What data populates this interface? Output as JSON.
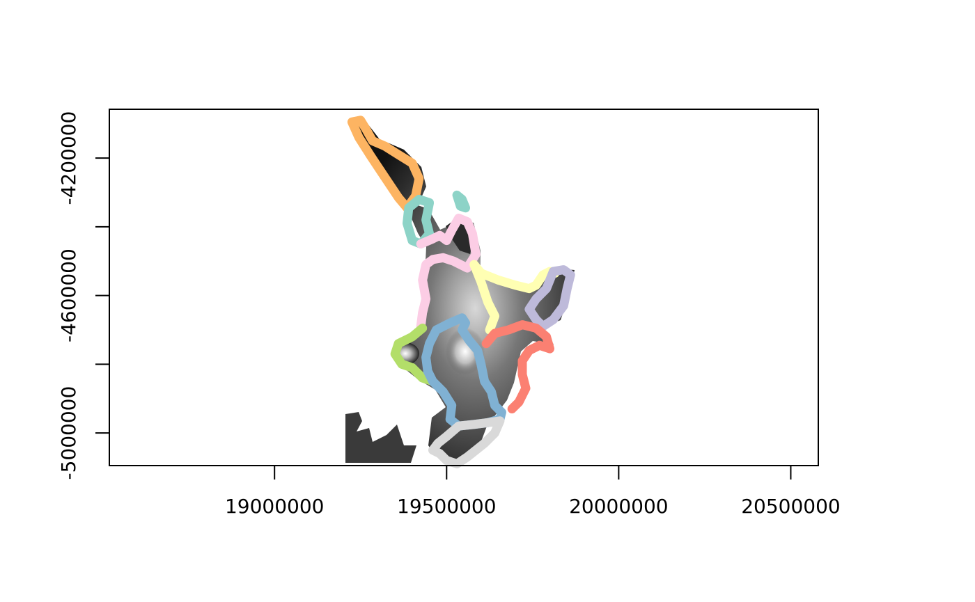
{
  "chart_data": {
    "type": "map",
    "title": "",
    "xlabel": "",
    "ylabel": "",
    "xlim": [
      18520000,
      20580000
    ],
    "ylim": [
      -5095000,
      -4058000
    ],
    "x_ticks": [
      {
        "value": 19000000,
        "label": "19000000"
      },
      {
        "value": 19500000,
        "label": "19500000"
      },
      {
        "value": 20000000,
        "label": "20000000"
      },
      {
        "value": 20500000,
        "label": "20500000"
      }
    ],
    "y_ticks": [
      {
        "value": -4200000,
        "label": "-4200000"
      },
      {
        "value": -4400000,
        "label": ""
      },
      {
        "value": -4600000,
        "label": "-4600000"
      },
      {
        "value": -4800000,
        "label": ""
      },
      {
        "value": -5000000,
        "label": "-5000000"
      }
    ],
    "raster": {
      "palette": "grayscale",
      "description_key": "elevation"
    },
    "regions": [
      {
        "color": "#FDB462",
        "points": [
          [
            19225000,
            -4095000
          ],
          [
            19250000,
            -4090000
          ],
          [
            19265000,
            -4115000
          ],
          [
            19285000,
            -4150000
          ],
          [
            19320000,
            -4165000
          ],
          [
            19360000,
            -4190000
          ],
          [
            19400000,
            -4215000
          ],
          [
            19420000,
            -4260000
          ],
          [
            19410000,
            -4310000
          ],
          [
            19385000,
            -4345000
          ],
          [
            19360000,
            -4315000
          ],
          [
            19320000,
            -4255000
          ],
          [
            19280000,
            -4195000
          ],
          [
            19245000,
            -4140000
          ],
          [
            19225000,
            -4095000
          ]
        ]
      },
      {
        "color": "#8DD3C7",
        "points": [
          [
            19390000,
            -4345000
          ],
          [
            19420000,
            -4320000
          ],
          [
            19450000,
            -4330000
          ],
          [
            19440000,
            -4380000
          ],
          [
            19450000,
            -4420000
          ],
          [
            19425000,
            -4450000
          ],
          [
            19400000,
            -4440000
          ],
          [
            19385000,
            -4390000
          ],
          [
            19390000,
            -4345000
          ]
        ]
      },
      {
        "color": "#8DD3C7",
        "points": [
          [
            19530000,
            -4308000
          ],
          [
            19545000,
            -4320000
          ],
          [
            19555000,
            -4345000
          ],
          [
            19540000,
            -4340000
          ],
          [
            19530000,
            -4308000
          ]
        ]
      },
      {
        "color": "#FCCDE5",
        "points": [
          [
            19425000,
            -4450000
          ],
          [
            19460000,
            -4435000
          ],
          [
            19480000,
            -4425000
          ],
          [
            19500000,
            -4440000
          ],
          [
            19515000,
            -4410000
          ],
          [
            19535000,
            -4375000
          ],
          [
            19560000,
            -4385000
          ],
          [
            19575000,
            -4420000
          ],
          [
            19585000,
            -4480000
          ],
          [
            19560000,
            -4520000
          ],
          [
            19520000,
            -4500000
          ],
          [
            19490000,
            -4490000
          ],
          [
            19460000,
            -4495000
          ],
          [
            19440000,
            -4510000
          ],
          [
            19430000,
            -4555000
          ],
          [
            19440000,
            -4610000
          ],
          [
            19430000,
            -4650000
          ],
          [
            19425000,
            -4690000
          ]
        ]
      },
      {
        "color": "#FFFFB3",
        "points": [
          [
            19580000,
            -4510000
          ],
          [
            19600000,
            -4535000
          ],
          [
            19650000,
            -4555000
          ],
          [
            19700000,
            -4570000
          ],
          [
            19740000,
            -4580000
          ],
          [
            19760000,
            -4570000
          ],
          [
            19780000,
            -4540000
          ],
          [
            19800000,
            -4530000
          ],
          [
            19815000,
            -4535000
          ]
        ]
      },
      {
        "color": "#FFFFB3",
        "points": [
          [
            19580000,
            -4510000
          ],
          [
            19600000,
            -4560000
          ],
          [
            19620000,
            -4620000
          ],
          [
            19640000,
            -4660000
          ],
          [
            19625000,
            -4700000
          ]
        ]
      },
      {
        "color": "#BEBADA",
        "points": [
          [
            19810000,
            -4530000
          ],
          [
            19840000,
            -4525000
          ],
          [
            19860000,
            -4540000
          ],
          [
            19850000,
            -4580000
          ],
          [
            19840000,
            -4630000
          ],
          [
            19810000,
            -4670000
          ],
          [
            19780000,
            -4690000
          ],
          [
            19760000,
            -4670000
          ],
          [
            19740000,
            -4640000
          ],
          [
            19760000,
            -4610000
          ],
          [
            19790000,
            -4580000
          ],
          [
            19810000,
            -4530000
          ]
        ]
      },
      {
        "color": "#FB8072",
        "points": [
          [
            19615000,
            -4740000
          ],
          [
            19640000,
            -4710000
          ],
          [
            19680000,
            -4700000
          ],
          [
            19720000,
            -4685000
          ],
          [
            19760000,
            -4695000
          ],
          [
            19790000,
            -4720000
          ],
          [
            19800000,
            -4755000
          ],
          [
            19770000,
            -4745000
          ],
          [
            19740000,
            -4760000
          ],
          [
            19720000,
            -4790000
          ],
          [
            19720000,
            -4830000
          ],
          [
            19730000,
            -4870000
          ],
          [
            19710000,
            -4910000
          ],
          [
            19690000,
            -4930000
          ]
        ]
      },
      {
        "color": "#B3DE69",
        "points": [
          [
            19430000,
            -4695000
          ],
          [
            19400000,
            -4720000
          ],
          [
            19360000,
            -4740000
          ],
          [
            19350000,
            -4770000
          ],
          [
            19370000,
            -4800000
          ],
          [
            19400000,
            -4810000
          ],
          [
            19430000,
            -4840000
          ],
          [
            19460000,
            -4850000
          ]
        ]
      },
      {
        "color": "#80B1D3",
        "points": [
          [
            19460000,
            -4850000
          ],
          [
            19445000,
            -4820000
          ],
          [
            19440000,
            -4780000
          ],
          [
            19450000,
            -4740000
          ],
          [
            19470000,
            -4700000
          ],
          [
            19510000,
            -4680000
          ],
          [
            19545000,
            -4665000
          ],
          [
            19555000,
            -4680000
          ],
          [
            19545000,
            -4700000
          ],
          [
            19565000,
            -4730000
          ],
          [
            19590000,
            -4760000
          ],
          [
            19600000,
            -4800000
          ],
          [
            19610000,
            -4850000
          ],
          [
            19630000,
            -4880000
          ],
          [
            19640000,
            -4920000
          ],
          [
            19660000,
            -4940000
          ],
          [
            19655000,
            -4960000
          ],
          [
            19620000,
            -4970000
          ],
          [
            19580000,
            -4975000
          ],
          [
            19535000,
            -4980000
          ],
          [
            19510000,
            -4960000
          ],
          [
            19515000,
            -4920000
          ],
          [
            19490000,
            -4880000
          ],
          [
            19460000,
            -4850000
          ]
        ]
      },
      {
        "color": "#D9D9D9",
        "points": [
          [
            19535000,
            -4980000
          ],
          [
            19580000,
            -4975000
          ],
          [
            19620000,
            -4970000
          ],
          [
            19655000,
            -4965000
          ],
          [
            19640000,
            -5000000
          ],
          [
            19610000,
            -5030000
          ],
          [
            19585000,
            -5050000
          ],
          [
            19560000,
            -5070000
          ],
          [
            19530000,
            -5090000
          ],
          [
            19500000,
            -5080000
          ],
          [
            19480000,
            -5060000
          ],
          [
            19460000,
            -5050000
          ],
          [
            19475000,
            -5030000
          ],
          [
            19500000,
            -5010000
          ],
          [
            19535000,
            -4980000
          ]
        ]
      }
    ]
  }
}
